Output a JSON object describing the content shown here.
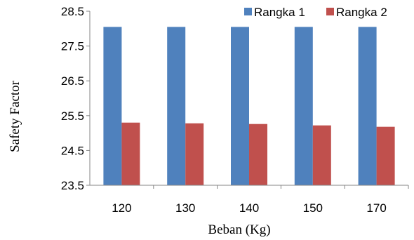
{
  "chart_data": {
    "type": "bar",
    "title": "",
    "xlabel": "Beban (Kg)",
    "ylabel": "Safety Factor",
    "categories": [
      "120",
      "130",
      "140",
      "150",
      "170"
    ],
    "ylim": [
      23.5,
      28.5
    ],
    "yticks": [
      "23.5",
      "24.5",
      "25.5",
      "26.5",
      "27.5",
      "28.5"
    ],
    "grid": false,
    "legend_position": "top-right",
    "series": [
      {
        "name": "Rangka 1",
        "color": "#4f81bd",
        "values": [
          28.05,
          28.05,
          28.05,
          28.05,
          28.05
        ]
      },
      {
        "name": "Rangka 2",
        "color": "#c0504d",
        "values": [
          25.3,
          25.28,
          25.26,
          25.22,
          25.18
        ]
      }
    ]
  }
}
